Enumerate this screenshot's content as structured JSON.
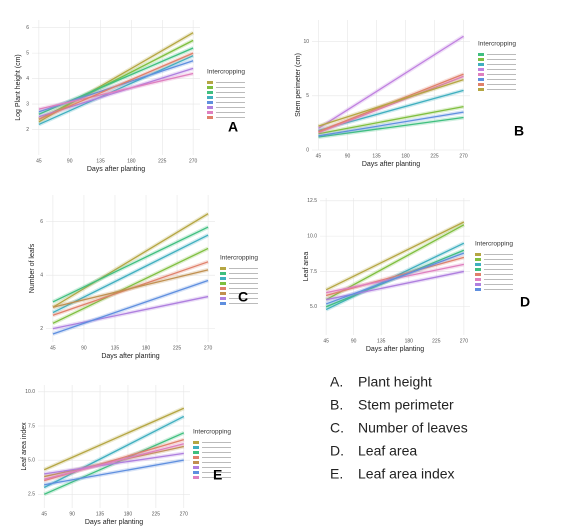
{
  "chart_data": [
    {
      "type": "line",
      "panel": "A",
      "ylabel": "Log Plant height (cm)",
      "xlabel": "Days after planting",
      "legend_title": "Intercropping",
      "x": [
        45,
        270
      ],
      "xlim": [
        35,
        280
      ],
      "xticks": [
        45,
        90,
        135,
        180,
        225,
        270
      ],
      "ylim": [
        1,
        6.3
      ],
      "yticks": [
        2,
        3,
        4,
        5,
        6
      ],
      "grid": true,
      "series": [
        {
          "color": "#b5a642",
          "values": [
            2.3,
            5.8
          ]
        },
        {
          "color": "#7fbf3f",
          "values": [
            2.4,
            5.5
          ]
        },
        {
          "color": "#3fbf7f",
          "values": [
            2.6,
            5.2
          ]
        },
        {
          "color": "#3fafbf",
          "values": [
            2.2,
            4.9
          ]
        },
        {
          "color": "#5f8fdf",
          "values": [
            2.7,
            4.7
          ]
        },
        {
          "color": "#af7fdf",
          "values": [
            2.5,
            4.4
          ]
        },
        {
          "color": "#df7fbf",
          "values": [
            2.8,
            4.2
          ]
        },
        {
          "color": "#e0806a",
          "values": [
            2.4,
            5.0
          ]
        }
      ]
    },
    {
      "type": "line",
      "panel": "B",
      "ylabel": "Stem perimeter (cm)",
      "xlabel": "Days after planting",
      "legend_title": "Intercropping",
      "x": [
        45,
        270
      ],
      "xlim": [
        35,
        280
      ],
      "xticks": [
        45,
        90,
        135,
        180,
        225,
        270
      ],
      "ylim": [
        0,
        12
      ],
      "yticks": [
        0,
        5,
        10
      ],
      "grid": true,
      "series": [
        {
          "color": "#3fbf7f",
          "values": [
            1.2,
            3.0
          ]
        },
        {
          "color": "#7fbf3f",
          "values": [
            1.5,
            4.0
          ]
        },
        {
          "color": "#3fafbf",
          "values": [
            1.8,
            5.5
          ]
        },
        {
          "color": "#c080e0",
          "values": [
            2.0,
            10.5
          ]
        },
        {
          "color": "#df7fbf",
          "values": [
            1.6,
            6.8
          ]
        },
        {
          "color": "#5f8fdf",
          "values": [
            1.3,
            3.5
          ]
        },
        {
          "color": "#e0806a",
          "values": [
            1.7,
            7.0
          ]
        },
        {
          "color": "#b5a642",
          "values": [
            2.2,
            6.5
          ]
        }
      ]
    },
    {
      "type": "line",
      "panel": "C",
      "ylabel": "Number of leafs",
      "xlabel": "Days after planting",
      "legend_title": "Intercropping",
      "x": [
        45,
        270
      ],
      "xlim": [
        35,
        280
      ],
      "xticks": [
        45,
        90,
        135,
        180,
        225,
        270
      ],
      "ylim": [
        1.5,
        7
      ],
      "yticks": [
        2,
        4,
        6
      ],
      "grid": true,
      "series": [
        {
          "color": "#b5a642",
          "values": [
            2.8,
            6.3
          ]
        },
        {
          "color": "#3fbf7f",
          "values": [
            3.0,
            5.8
          ]
        },
        {
          "color": "#3fafbf",
          "values": [
            2.6,
            5.5
          ]
        },
        {
          "color": "#7fbf3f",
          "values": [
            2.2,
            5.0
          ]
        },
        {
          "color": "#e0806a",
          "values": [
            2.5,
            4.5
          ]
        },
        {
          "color": "#c09050",
          "values": [
            2.8,
            4.2
          ]
        },
        {
          "color": "#af7fdf",
          "values": [
            2.0,
            3.2
          ]
        },
        {
          "color": "#5f8fdf",
          "values": [
            1.8,
            3.8
          ]
        }
      ]
    },
    {
      "type": "line",
      "panel": "D",
      "ylabel": "Leaf area",
      "xlabel": "Days after planting",
      "legend_title": "Intercropping",
      "x": [
        45,
        270
      ],
      "xlim": [
        35,
        280
      ],
      "xticks": [
        45,
        90,
        135,
        180,
        225,
        270
      ],
      "ylim": [
        3,
        12.7
      ],
      "yticks": [
        {
          "value": 5,
          "label": "5.0"
        },
        {
          "value": 7.5,
          "label": "7.5"
        },
        {
          "value": 10,
          "label": "10.0"
        },
        {
          "value": 12.5,
          "label": "12.5"
        }
      ],
      "grid": true,
      "series": [
        {
          "color": "#b5a642",
          "values": [
            6.2,
            11.0
          ]
        },
        {
          "color": "#7fbf3f",
          "values": [
            5.5,
            10.8
          ]
        },
        {
          "color": "#3fafbf",
          "values": [
            4.8,
            9.5
          ]
        },
        {
          "color": "#3fbf7f",
          "values": [
            5.0,
            9.0
          ]
        },
        {
          "color": "#e0806a",
          "values": [
            5.8,
            8.5
          ]
        },
        {
          "color": "#df7fbf",
          "values": [
            6.0,
            8.0
          ]
        },
        {
          "color": "#af7fdf",
          "values": [
            5.5,
            7.5
          ]
        },
        {
          "color": "#5f8fdf",
          "values": [
            5.2,
            8.8
          ]
        }
      ]
    },
    {
      "type": "line",
      "panel": "E",
      "ylabel": "Leaf area index",
      "xlabel": "Days after planting",
      "legend_title": "Intercropping",
      "x": [
        45,
        270
      ],
      "xlim": [
        35,
        280
      ],
      "xticks": [
        45,
        90,
        135,
        180,
        225,
        270
      ],
      "ylim": [
        1.5,
        10.5
      ],
      "yticks": [
        {
          "value": 2.5,
          "label": "2.5"
        },
        {
          "value": 5,
          "label": "5.0"
        },
        {
          "value": 7.5,
          "label": "7.5"
        },
        {
          "value": 10,
          "label": "10.0"
        }
      ],
      "grid": true,
      "series": [
        {
          "color": "#b5a642",
          "values": [
            4.3,
            8.8
          ]
        },
        {
          "color": "#3fafbf",
          "values": [
            3.0,
            8.2
          ]
        },
        {
          "color": "#3fbf7f",
          "values": [
            2.5,
            7.0
          ]
        },
        {
          "color": "#e0806a",
          "values": [
            3.5,
            6.5
          ]
        },
        {
          "color": "#c09050",
          "values": [
            3.8,
            6.0
          ]
        },
        {
          "color": "#af7fdf",
          "values": [
            4.0,
            5.5
          ]
        },
        {
          "color": "#5f8fdf",
          "values": [
            3.2,
            5.0
          ]
        },
        {
          "color": "#df7fbf",
          "values": [
            3.6,
            6.2
          ]
        }
      ]
    }
  ],
  "key": [
    {
      "letter": "A.",
      "label": "Plant height"
    },
    {
      "letter": "B.",
      "label": "Stem perimeter"
    },
    {
      "letter": "C.",
      "label": "Number of leaves"
    },
    {
      "letter": "D.",
      "label": "Leaf area"
    },
    {
      "letter": "E.",
      "label": "Leaf area index"
    }
  ]
}
